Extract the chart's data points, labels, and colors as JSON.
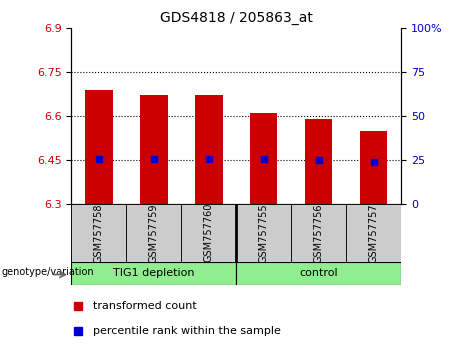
{
  "title": "GDS4818 / 205863_at",
  "samples": [
    "GSM757758",
    "GSM757759",
    "GSM757760",
    "GSM757755",
    "GSM757756",
    "GSM757757"
  ],
  "bar_values": [
    6.69,
    6.67,
    6.67,
    6.61,
    6.59,
    6.55
  ],
  "percentile_values": [
    6.452,
    6.452,
    6.452,
    6.452,
    6.448,
    6.443
  ],
  "bar_color": "#cc0000",
  "dot_color": "#0000cc",
  "ylim_left": [
    6.3,
    6.9
  ],
  "ylim_right": [
    0,
    100
  ],
  "yticks_left": [
    6.3,
    6.45,
    6.6,
    6.75,
    6.9
  ],
  "yticks_right": [
    0,
    25,
    50,
    75,
    100
  ],
  "ytick_labels_left": [
    "6.3",
    "6.45",
    "6.6",
    "6.75",
    "6.9"
  ],
  "ytick_labels_right": [
    "0",
    "25",
    "50",
    "75",
    "100%"
  ],
  "hlines": [
    6.45,
    6.6,
    6.75
  ],
  "group1_label": "TIG1 depletion",
  "group2_label": "control",
  "group_label_left": "genotype/variation",
  "legend_red": "transformed count",
  "legend_blue": "percentile rank within the sample",
  "bar_width": 0.5,
  "label_color_left": "#cc0000",
  "label_color_right": "#0000cc",
  "gray_bg": "#cccccc",
  "green_bg": "#90ee90",
  "sep_after": 2
}
